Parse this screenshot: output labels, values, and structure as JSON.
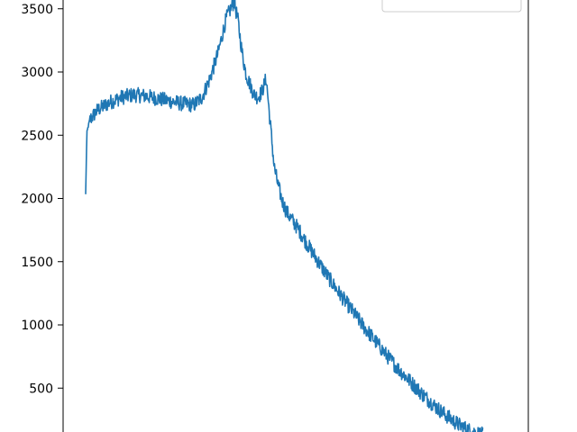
{
  "colors": {
    "series": "#1f77b4",
    "axis": "#000000",
    "background": "#ffffff"
  },
  "chart_data": {
    "type": "line",
    "title": "",
    "xlabel": "",
    "ylabel": "",
    "grid": false,
    "legend": {
      "placement": "top-right",
      "entries": []
    },
    "ylim": [
      200,
      3600
    ],
    "xlim": [
      0,
      100
    ],
    "yticks": [
      500,
      1000,
      1500,
      2000,
      2500,
      3000,
      3500
    ],
    "series": [
      {
        "color": "#1f77b4",
        "noise": 60,
        "x": [
          0,
          0.3,
          1,
          3,
          6,
          9,
          12,
          15,
          18,
          21,
          24,
          27,
          29,
          31,
          33,
          35,
          37,
          38,
          39,
          40,
          41,
          42,
          43,
          44,
          45,
          46,
          47,
          48,
          49,
          50,
          51,
          53,
          55,
          57,
          60,
          63,
          66,
          69,
          72,
          75,
          78,
          81,
          84,
          87,
          90,
          93,
          96,
          99
        ],
        "y": [
          2030,
          2520,
          2620,
          2700,
          2760,
          2800,
          2820,
          2810,
          2790,
          2770,
          2750,
          2740,
          2800,
          2950,
          3150,
          3420,
          3560,
          3400,
          3150,
          2980,
          2900,
          2820,
          2800,
          2850,
          2950,
          2600,
          2250,
          2100,
          1980,
          1900,
          1850,
          1760,
          1650,
          1550,
          1400,
          1260,
          1130,
          1000,
          880,
          760,
          650,
          550,
          450,
          360,
          280,
          210,
          160,
          130
        ]
      }
    ]
  }
}
